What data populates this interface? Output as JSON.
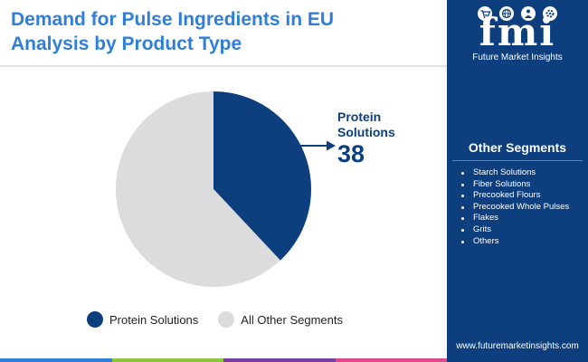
{
  "header": {
    "title_line1": "Demand for Pulse Ingredients in EU",
    "title_line2": "Analysis by Product Type"
  },
  "chart_data": {
    "type": "pie",
    "title": "Demand for Pulse Ingredients in EU Analysis by Product Type",
    "slices": [
      {
        "label": "Protein Solutions",
        "value": 38,
        "color": "#0d3f7e"
      },
      {
        "label": "All Other Segments",
        "value": 62,
        "color": "#dcdcdc"
      }
    ],
    "callout": {
      "label_line1": "Protein",
      "label_line2": "Solutions",
      "value": "38"
    },
    "legend": {
      "placement": "bottom",
      "items": [
        "Protein Solutions",
        "All Other Segments"
      ]
    }
  },
  "sidebar": {
    "logo_text": "fmi",
    "logo_subtitle": "Future Market Insights",
    "logo_icons": [
      "cart-icon",
      "globe-icon",
      "person-icon",
      "gear-icon"
    ],
    "other_segments_title": "Other Segments",
    "other_segments": [
      "Starch Solutions",
      "Fiber Solutions",
      "Precooked Flours",
      "Precooked Whole Pulses",
      "Flakes",
      "Grits",
      "Others"
    ],
    "website": "www.futuremarketinsights.com"
  },
  "colors": {
    "title": "#2f7fd9",
    "primary": "#0d3f7e",
    "other": "#dcdcdc",
    "bottom_bar": [
      "#2f7fd9",
      "#8dc63f",
      "#7b3fa0",
      "#e04a8a"
    ]
  }
}
